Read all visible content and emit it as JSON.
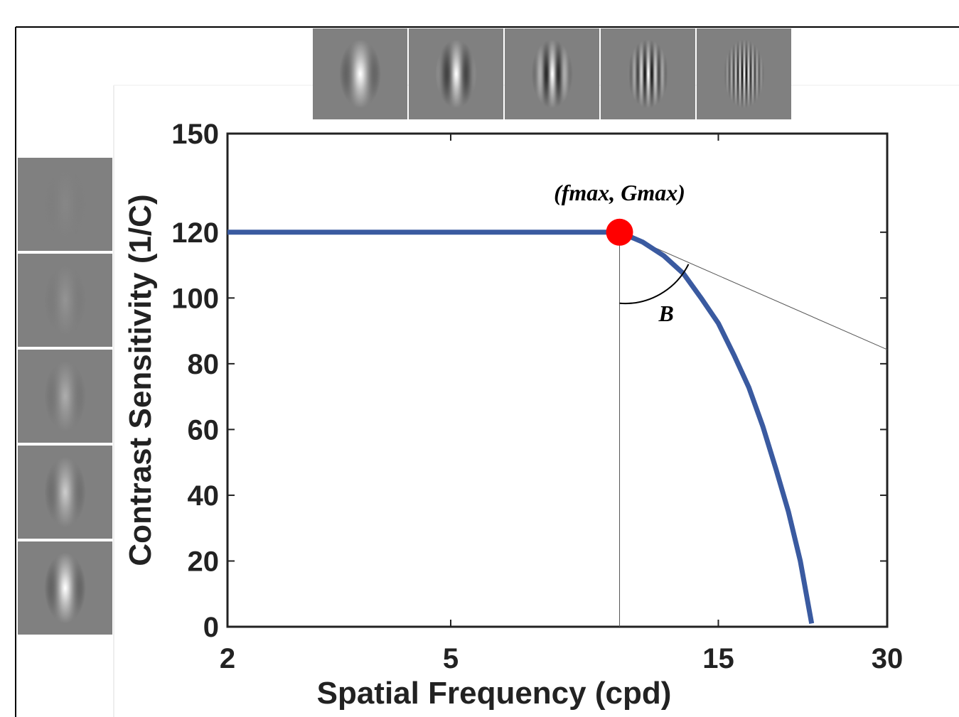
{
  "chart_data": {
    "type": "line",
    "xlabel": "Spatial Frequency (cpd)",
    "ylabel": "Contrast Sensitivity (1/C)",
    "xscale": "log",
    "x": [
      2,
      10,
      11,
      12,
      13,
      14,
      15,
      16,
      17,
      18,
      19,
      20,
      21,
      22
    ],
    "series": [
      {
        "color": "#3a5aa0",
        "values": [
          120,
          120,
          117,
          112.8,
          107.4,
          99.8,
          92.3,
          82.6,
          72.8,
          61,
          48,
          35,
          20,
          1
        ]
      }
    ],
    "peak": {
      "x": 10,
      "y": 120,
      "color": "#ff0000",
      "label": "(fmax, Gmax)"
    },
    "tangent": {
      "x": [
        10,
        30
      ],
      "values": [
        120,
        84.3
      ]
    },
    "angle_label": "B",
    "xlim": [
      2,
      30
    ],
    "ylim": [
      0,
      150
    ],
    "xticks": [
      2,
      5,
      15,
      30
    ],
    "yticks": [
      0,
      20,
      40,
      60,
      80,
      100,
      120,
      150
    ]
  }
}
